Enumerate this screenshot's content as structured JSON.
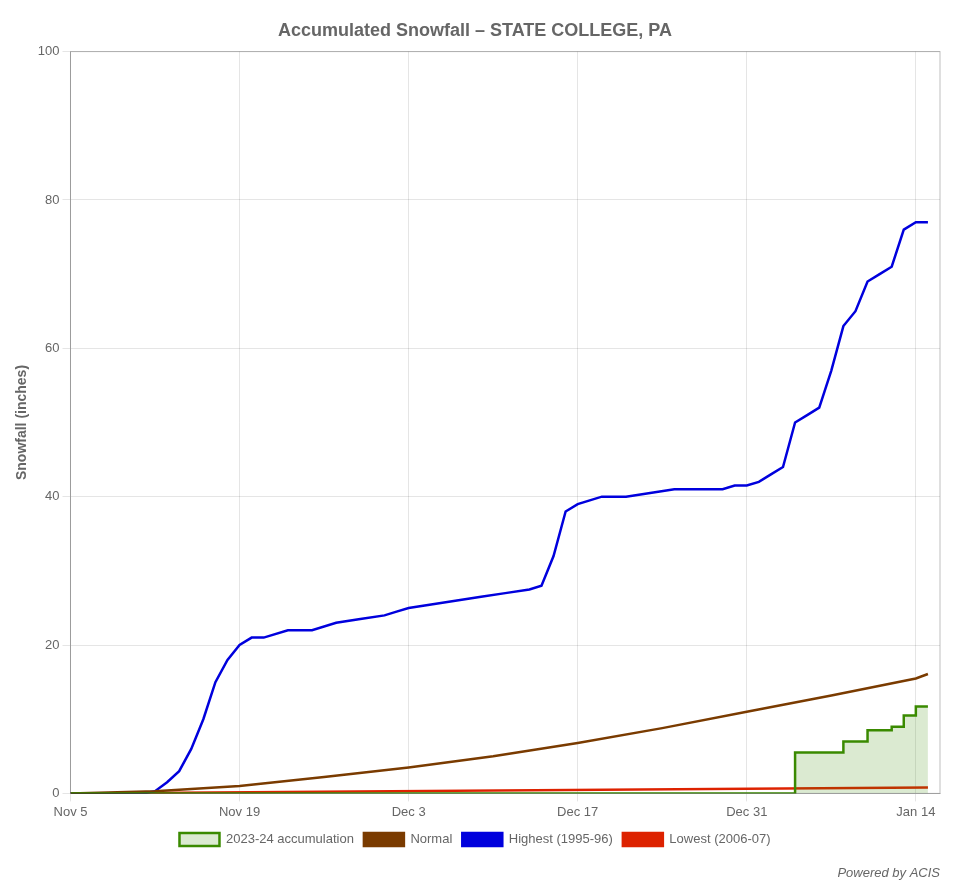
{
  "chart_data": {
    "type": "line",
    "title": "Accumulated Snowfall – STATE COLLEGE, PA",
    "ylabel": "Snowfall (inches)",
    "annotation": "Powered by ACIS",
    "xlim": [
      0,
      72
    ],
    "xticks": [
      {
        "value": 0,
        "label": "Nov 5"
      },
      {
        "value": 14,
        "label": "Nov 19"
      },
      {
        "value": 28,
        "label": "Dec 3"
      },
      {
        "value": 42,
        "label": "Dec 17"
      },
      {
        "value": 56,
        "label": "Dec 31"
      },
      {
        "value": 70,
        "label": "Jan 14"
      }
    ],
    "ylim": [
      0,
      100
    ],
    "yticks": [
      0,
      20,
      40,
      60,
      80,
      100
    ],
    "grid": true,
    "legend": "bottom",
    "series": [
      {
        "name": "2023-24 accumulation",
        "color": "#3a8a00",
        "type": "area",
        "line_style": "step",
        "x": [
          0,
          56,
          59,
          60,
          63,
          64,
          65,
          66,
          67,
          68,
          69,
          70,
          71
        ],
        "values": [
          0,
          0,
          0,
          5.5,
          5.5,
          7.0,
          7.0,
          8.5,
          8.5,
          9.0,
          10.5,
          11.7,
          11.7
        ]
      },
      {
        "name": "Normal",
        "color": "#7a3b00",
        "x": [
          0,
          7,
          14,
          21,
          28,
          35,
          42,
          49,
          56,
          63,
          70,
          71
        ],
        "values": [
          0,
          0.3,
          1.0,
          2.2,
          3.5,
          5.0,
          6.8,
          8.8,
          11.0,
          13.2,
          15.5,
          16.1
        ]
      },
      {
        "name": "Highest (1995-96)",
        "color": "#0000dd",
        "x": [
          0,
          6,
          7,
          8,
          9,
          10,
          11,
          12,
          13,
          14,
          15,
          16,
          18,
          20,
          22,
          24,
          26,
          27,
          28,
          30,
          32,
          34,
          36,
          38,
          39,
          40,
          41,
          42,
          43,
          44,
          46,
          48,
          50,
          52,
          54,
          55,
          56,
          57,
          58,
          59,
          60,
          61,
          62,
          63,
          64,
          65,
          66,
          67,
          68,
          69,
          70,
          71
        ],
        "values": [
          0,
          0,
          0.3,
          1.5,
          3,
          6,
          10,
          15,
          18,
          20,
          21,
          21,
          22,
          22,
          23,
          23.5,
          24,
          24.5,
          25,
          25.5,
          26,
          26.5,
          27,
          27.5,
          28,
          32,
          38,
          39,
          39.5,
          40,
          40,
          40.5,
          41,
          41,
          41,
          41.5,
          41.5,
          42,
          43,
          44,
          50,
          51,
          52,
          57,
          63,
          65,
          69,
          70,
          71,
          76,
          77,
          77
        ]
      },
      {
        "name": "Lowest (2006-07)",
        "color": "#dd2200",
        "x": [
          0,
          71
        ],
        "values": [
          0.0,
          0.8
        ]
      }
    ]
  }
}
